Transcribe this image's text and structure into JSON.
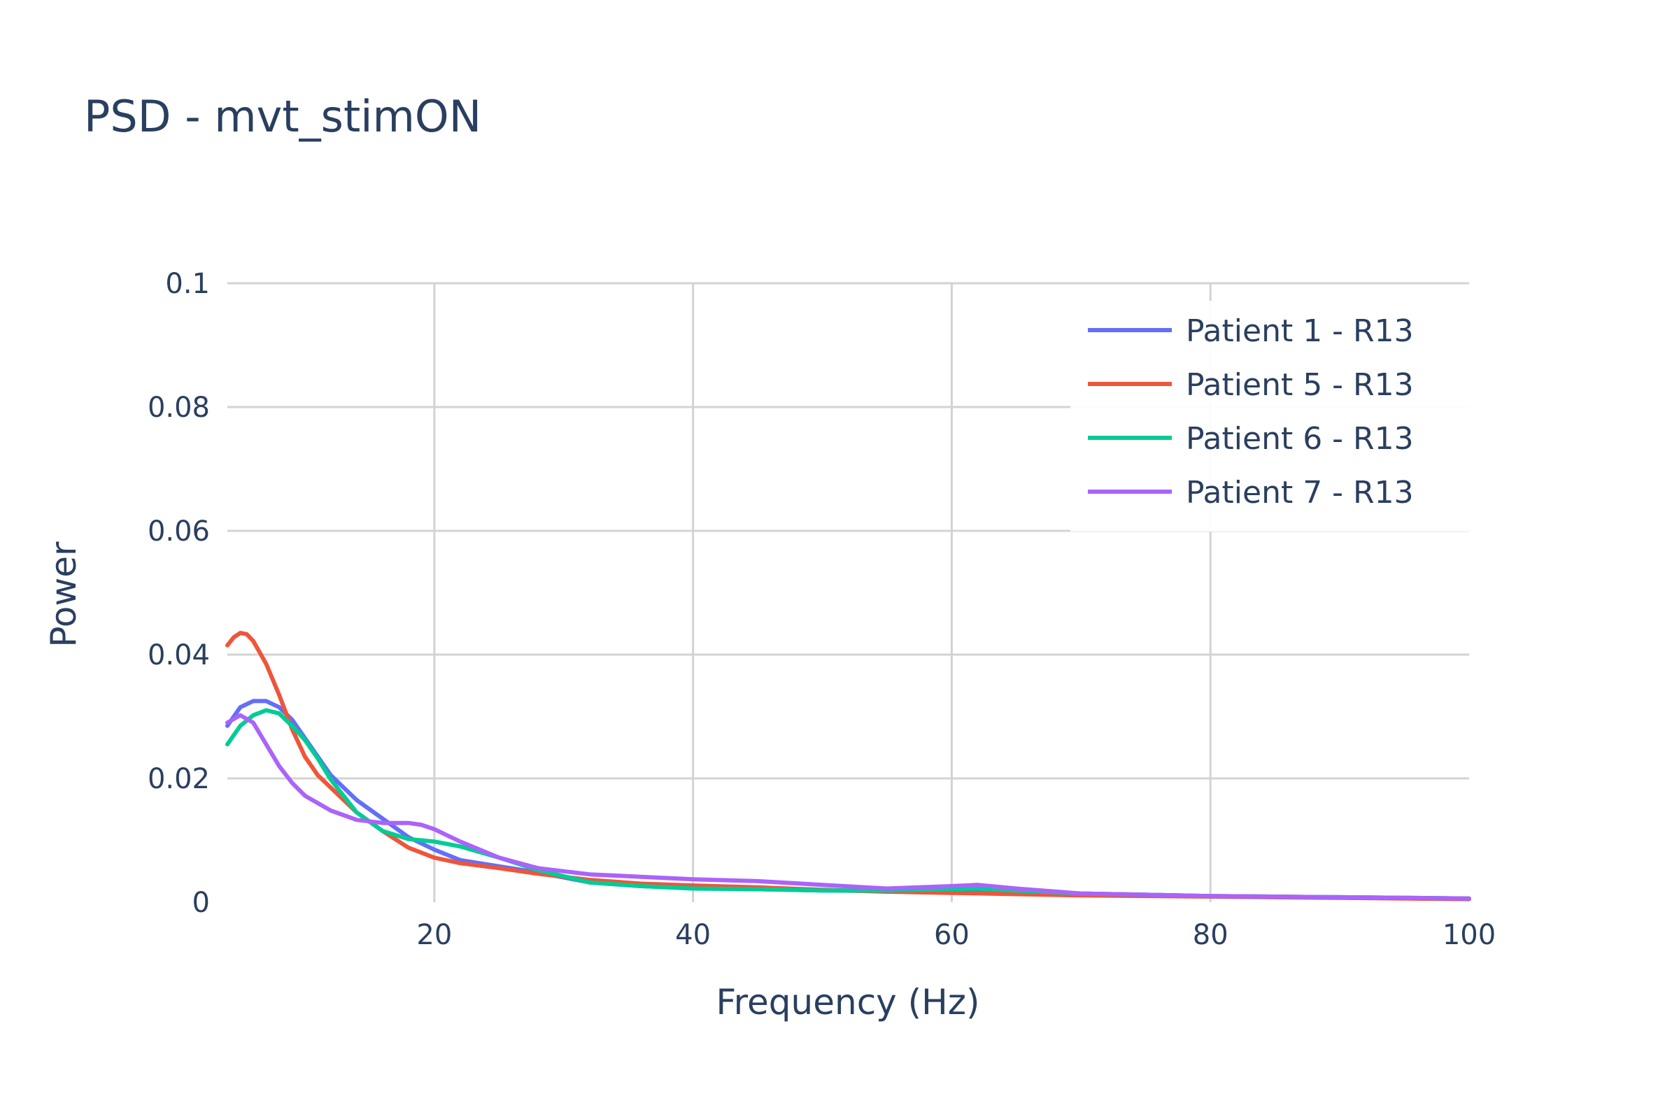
{
  "chart_data": {
    "type": "line",
    "title": "PSD - mvt_stimON",
    "xlabel": "Frequency (Hz)",
    "ylabel": "Power",
    "xlim": [
      4,
      100
    ],
    "ylim": [
      0,
      0.1
    ],
    "x_ticks": [
      20,
      40,
      60,
      80,
      100
    ],
    "x_tick_labels": [
      "20",
      "40",
      "60",
      "80",
      "100"
    ],
    "y_ticks": [
      0,
      0.02,
      0.04,
      0.06,
      0.08,
      0.1
    ],
    "y_tick_labels": [
      "0",
      "0.02",
      "0.04",
      "0.06",
      "0.08",
      "0.1"
    ],
    "grid": true,
    "legend_position": "top-right",
    "series": [
      {
        "name": "Patient 1 - R13",
        "color": "#636efa",
        "x": [
          4,
          5,
          6,
          7,
          8,
          9,
          10,
          11,
          12,
          14,
          16,
          18,
          20,
          22,
          25,
          28,
          32,
          36,
          40,
          45,
          50,
          55,
          60,
          62,
          65,
          70,
          80,
          90,
          100
        ],
        "y": [
          0.0285,
          0.0315,
          0.0325,
          0.0325,
          0.0315,
          0.0295,
          0.0265,
          0.0235,
          0.0205,
          0.0165,
          0.0135,
          0.0105,
          0.0085,
          0.0068,
          0.0058,
          0.0048,
          0.0032,
          0.0026,
          0.0023,
          0.0021,
          0.0019,
          0.0018,
          0.0018,
          0.0018,
          0.0017,
          0.0014,
          0.001,
          0.0008,
          0.0006
        ]
      },
      {
        "name": "Patient 5 - R13",
        "color": "#ef553b",
        "x": [
          4,
          4.5,
          5,
          5.5,
          6,
          7,
          8,
          9,
          10,
          11,
          12,
          13,
          14,
          16,
          18,
          20,
          22,
          25,
          28,
          32,
          36,
          40,
          45,
          50,
          55,
          60,
          65,
          70,
          80,
          90,
          100
        ],
        "y": [
          0.0415,
          0.0428,
          0.0435,
          0.0433,
          0.0422,
          0.0385,
          0.0335,
          0.028,
          0.0235,
          0.0205,
          0.0185,
          0.0165,
          0.0145,
          0.0115,
          0.0088,
          0.0072,
          0.0063,
          0.0055,
          0.0046,
          0.0036,
          0.003,
          0.0027,
          0.0024,
          0.002,
          0.0017,
          0.0015,
          0.0013,
          0.0011,
          0.0009,
          0.0007,
          0.0005
        ]
      },
      {
        "name": "Patient 6 - R13",
        "color": "#00cc96",
        "x": [
          4,
          5,
          6,
          7,
          8,
          9,
          10,
          11,
          12,
          14,
          16,
          18,
          20,
          22,
          25,
          28,
          32,
          36,
          40,
          45,
          50,
          55,
          60,
          62,
          65,
          70,
          80,
          90,
          100
        ],
        "y": [
          0.0255,
          0.0285,
          0.0302,
          0.031,
          0.0305,
          0.0285,
          0.0262,
          0.0232,
          0.0198,
          0.0145,
          0.0115,
          0.0102,
          0.0098,
          0.009,
          0.0072,
          0.0052,
          0.0032,
          0.0026,
          0.0022,
          0.0021,
          0.0019,
          0.0019,
          0.0021,
          0.0022,
          0.0019,
          0.0014,
          0.001,
          0.0008,
          0.0006
        ]
      },
      {
        "name": "Patient 7 - R13",
        "color": "#ab63fa",
        "x": [
          4,
          5,
          6,
          7,
          8,
          9,
          10,
          12,
          14,
          16,
          18,
          19,
          20,
          22,
          25,
          28,
          32,
          36,
          40,
          45,
          50,
          55,
          60,
          62,
          65,
          70,
          80,
          90,
          100
        ],
        "y": [
          0.029,
          0.0302,
          0.029,
          0.0255,
          0.022,
          0.0193,
          0.0172,
          0.0148,
          0.0133,
          0.0128,
          0.0128,
          0.0125,
          0.0118,
          0.0098,
          0.0072,
          0.0055,
          0.0045,
          0.0041,
          0.0037,
          0.0034,
          0.0028,
          0.0022,
          0.0026,
          0.0028,
          0.0022,
          0.0014,
          0.001,
          0.0008,
          0.0006
        ]
      }
    ]
  }
}
